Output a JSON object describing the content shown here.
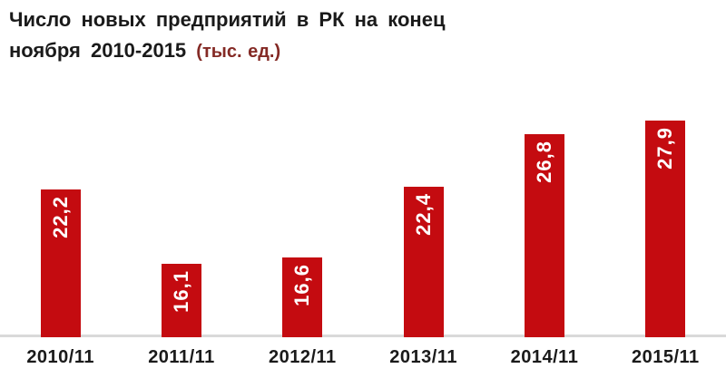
{
  "title": {
    "line1": "Число новых предприятий в РК на конец",
    "line2_main": "ноября 2010-2015",
    "line2_unit": "(тыс. ед.)"
  },
  "chart_data": {
    "type": "bar",
    "title": "Число новых предприятий в РК на конец ноября 2010-2015 (тыс. ед.)",
    "categories": [
      "2010/11",
      "2011/11",
      "2012/11",
      "2013/11",
      "2014/11",
      "2015/11"
    ],
    "values": [
      22.2,
      16.1,
      16.6,
      22.4,
      26.8,
      27.9
    ],
    "value_labels": [
      "22,2",
      "16,1",
      "16,6",
      "22,4",
      "26,8",
      "27,9"
    ],
    "xlabel": "",
    "ylabel": "",
    "unit": "тыс. ед.",
    "ylim": [
      10,
      28.5
    ],
    "grid": false,
    "legend_position": "none",
    "value_label_rotation_deg": 90,
    "bar_color": "#C40B10",
    "value_label_color": "#FFFFFF",
    "axis_line_color": "#D9D9D9"
  },
  "colors": {
    "background": "#FFFFFF",
    "title_text": "#1A1A1A",
    "unit_text": "#842A25",
    "category_text": "#1A1A1A"
  }
}
